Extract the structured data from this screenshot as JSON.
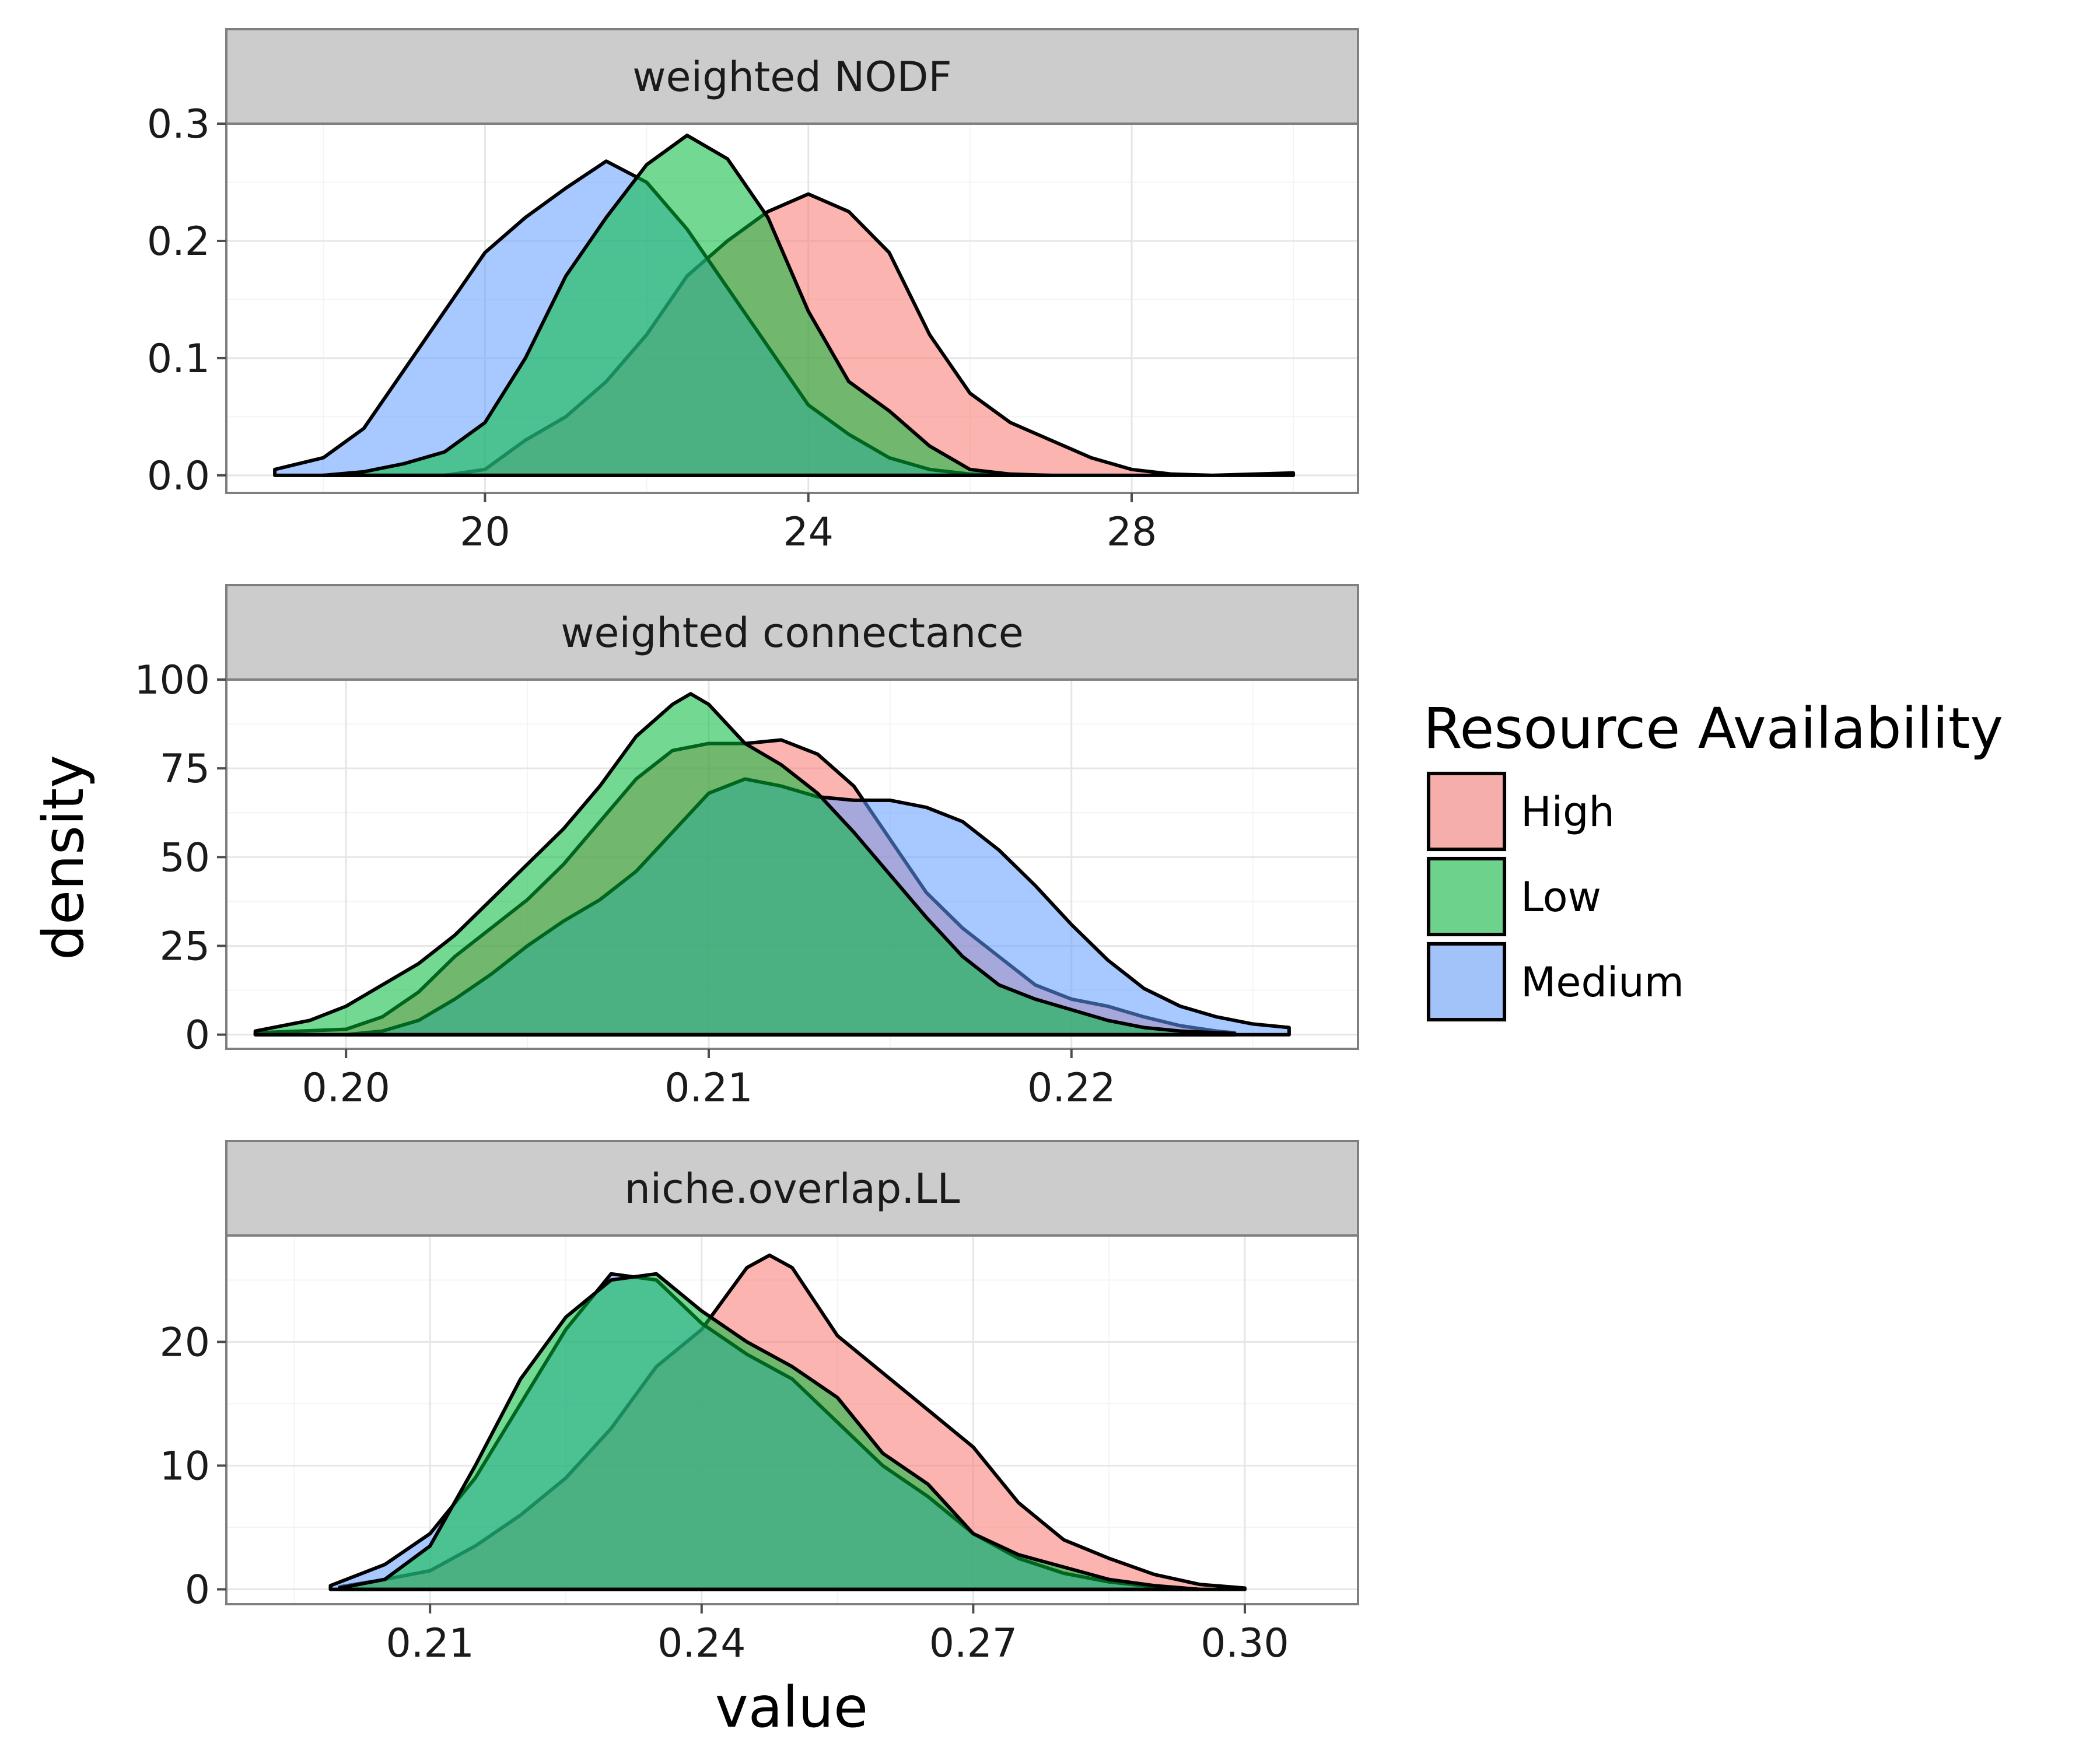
{
  "chart_data": {
    "type": "area",
    "ylabel": "density",
    "xlabel": "value",
    "legend": {
      "title": "Resource Availability",
      "placement": "right",
      "entries": [
        {
          "name": "High",
          "color": "#F8766D"
        },
        {
          "name": "Low",
          "color": "#00BA38"
        },
        {
          "name": "Medium",
          "color": "#619CFF"
        }
      ]
    },
    "grid": true,
    "panels": [
      {
        "title": "weighted NODF",
        "xlim": [
          16.8,
          30.8
        ],
        "ylim": [
          -0.015,
          0.3
        ],
        "xticks": [
          20,
          24,
          28
        ],
        "xtick_labels": [
          "20",
          "24",
          "28"
        ],
        "yticks": [
          0,
          0.1,
          0.2,
          0.3
        ],
        "ytick_labels": [
          "0.0",
          "0.1",
          "0.2",
          "0.3"
        ],
        "series": [
          {
            "name": "High",
            "color": "#F8766D",
            "x": [
              19.5,
              20.0,
              20.5,
              21.0,
              21.5,
              22.0,
              22.5,
              23.0,
              23.5,
              24.0,
              24.5,
              25.0,
              25.5,
              26.0,
              26.5,
              27.0,
              27.5,
              28.0,
              28.5,
              29.0,
              30.0
            ],
            "y": [
              0.0,
              0.005,
              0.03,
              0.05,
              0.08,
              0.12,
              0.17,
              0.2,
              0.225,
              0.24,
              0.225,
              0.19,
              0.12,
              0.07,
              0.045,
              0.03,
              0.015,
              0.005,
              0.001,
              0.0,
              0.002
            ]
          },
          {
            "name": "Low",
            "color": "#00BA38",
            "x": [
              18.0,
              18.5,
              19.0,
              19.5,
              20.0,
              20.5,
              21.0,
              21.5,
              22.0,
              22.5,
              23.0,
              23.5,
              24.0,
              24.5,
              25.0,
              25.5,
              26.0,
              26.5,
              27.0
            ],
            "y": [
              0.0,
              0.003,
              0.01,
              0.02,
              0.045,
              0.1,
              0.17,
              0.22,
              0.265,
              0.29,
              0.27,
              0.22,
              0.14,
              0.08,
              0.055,
              0.025,
              0.005,
              0.001,
              0.0
            ]
          },
          {
            "name": "Medium",
            "color": "#619CFF",
            "x": [
              17.4,
              18.0,
              18.5,
              19.0,
              19.5,
              20.0,
              20.5,
              21.0,
              21.5,
              22.0,
              22.5,
              23.0,
              23.5,
              24.0,
              24.5,
              25.0,
              25.5,
              26.0,
              26.5
            ],
            "y": [
              0.005,
              0.015,
              0.04,
              0.09,
              0.14,
              0.19,
              0.22,
              0.245,
              0.268,
              0.25,
              0.21,
              0.16,
              0.11,
              0.06,
              0.035,
              0.015,
              0.005,
              0.001,
              0.0
            ]
          }
        ]
      },
      {
        "title": "weighted connectance",
        "xlim": [
          0.1967,
          0.2279
        ],
        "ylim": [
          -4,
          100
        ],
        "xticks": [
          0.2,
          0.21,
          0.22
        ],
        "xtick_labels": [
          "0.20",
          "0.21",
          "0.22"
        ],
        "yticks": [
          0,
          25,
          50,
          75,
          100
        ],
        "ytick_labels": [
          "0",
          "25",
          "50",
          "75",
          "100"
        ],
        "series": [
          {
            "name": "High",
            "color": "#F8766D",
            "x": [
              0.1975,
              0.2,
              0.201,
              0.202,
              0.203,
              0.204,
              0.205,
              0.206,
              0.207,
              0.208,
              0.209,
              0.21,
              0.211,
              0.212,
              0.213,
              0.214,
              0.215,
              0.216,
              0.217,
              0.218,
              0.219,
              0.22,
              0.221,
              0.222,
              0.223,
              0.224,
              0.2245
            ],
            "y": [
              0.5,
              1.5,
              5,
              12,
              22,
              30,
              38,
              48,
              60,
              72,
              80,
              82,
              82,
              83,
              79,
              70,
              55,
              40,
              30,
              22,
              14,
              10,
              8,
              5,
              2.5,
              1,
              0.5
            ]
          },
          {
            "name": "Low",
            "color": "#00BA38",
            "x": [
              0.1975,
              0.199,
              0.2,
              0.201,
              0.202,
              0.203,
              0.204,
              0.205,
              0.206,
              0.207,
              0.208,
              0.209,
              0.2095,
              0.21,
              0.211,
              0.212,
              0.213,
              0.214,
              0.215,
              0.216,
              0.217,
              0.218,
              0.219,
              0.22,
              0.221,
              0.222,
              0.223,
              0.2245
            ],
            "y": [
              1,
              4,
              8,
              14,
              20,
              28,
              38,
              48,
              58,
              70,
              84,
              93,
              96,
              93,
              82,
              76,
              68,
              57,
              45,
              33,
              22,
              14,
              10,
              7,
              4,
              2,
              1,
              0.3
            ]
          },
          {
            "name": "Medium",
            "color": "#619CFF",
            "x": [
              0.2,
              0.201,
              0.202,
              0.203,
              0.204,
              0.205,
              0.206,
              0.207,
              0.208,
              0.209,
              0.21,
              0.211,
              0.212,
              0.213,
              0.214,
              0.215,
              0.216,
              0.217,
              0.218,
              0.219,
              0.22,
              0.221,
              0.222,
              0.223,
              0.224,
              0.225,
              0.226
            ],
            "y": [
              0,
              1,
              4,
              10,
              17,
              25,
              32,
              38,
              46,
              57,
              68,
              72,
              70,
              67,
              66,
              66,
              64,
              60,
              52,
              42,
              31,
              21,
              13,
              8,
              5,
              3,
              2
            ]
          }
        ]
      },
      {
        "title": "niche.overlap.LL",
        "xlim": [
          0.1875,
          0.3125
        ],
        "ylim": [
          -1.2,
          28.6
        ],
        "xticks": [
          0.21,
          0.24,
          0.27,
          0.3
        ],
        "xtick_labels": [
          "0.21",
          "0.24",
          "0.27",
          "0.30"
        ],
        "yticks": [
          0,
          10,
          20
        ],
        "ytick_labels": [
          "0",
          "10",
          "20"
        ],
        "series": [
          {
            "name": "High",
            "color": "#F8766D",
            "x": [
              0.2,
              0.205,
              0.21,
              0.215,
              0.22,
              0.225,
              0.23,
              0.235,
              0.24,
              0.245,
              0.2475,
              0.25,
              0.255,
              0.26,
              0.265,
              0.27,
              0.275,
              0.28,
              0.285,
              0.29,
              0.295,
              0.3
            ],
            "y": [
              0.2,
              0.8,
              1.5,
              3.5,
              6,
              9,
              13,
              18,
              21,
              26,
              27,
              26,
              20.5,
              17.5,
              14.5,
              11.5,
              7,
              4,
              2.5,
              1.2,
              0.4,
              0.1
            ]
          },
          {
            "name": "Low",
            "color": "#00BA38",
            "x": [
              0.2,
              0.205,
              0.21,
              0.215,
              0.22,
              0.225,
              0.23,
              0.235,
              0.24,
              0.245,
              0.25,
              0.255,
              0.26,
              0.265,
              0.27,
              0.275,
              0.28,
              0.285,
              0.29,
              0.295
            ],
            "y": [
              0.1,
              0.8,
              3.5,
              10,
              17,
              22,
              25,
              25.5,
              22.5,
              20,
              18,
              15.5,
              11,
              8.5,
              4.5,
              2.8,
              1.8,
              0.8,
              0.3,
              0
            ]
          },
          {
            "name": "Medium",
            "color": "#619CFF",
            "x": [
              0.199,
              0.205,
              0.21,
              0.215,
              0.22,
              0.225,
              0.23,
              0.235,
              0.24,
              0.245,
              0.25,
              0.255,
              0.26,
              0.265,
              0.27,
              0.275,
              0.28,
              0.285,
              0.29,
              0.295
            ],
            "y": [
              0.3,
              2,
              4.5,
              9,
              15,
              21,
              25.5,
              25,
              21.5,
              19,
              17,
              13.5,
              10,
              7.5,
              4.5,
              2.5,
              1.3,
              0.6,
              0.2,
              0
            ]
          }
        ]
      }
    ]
  }
}
